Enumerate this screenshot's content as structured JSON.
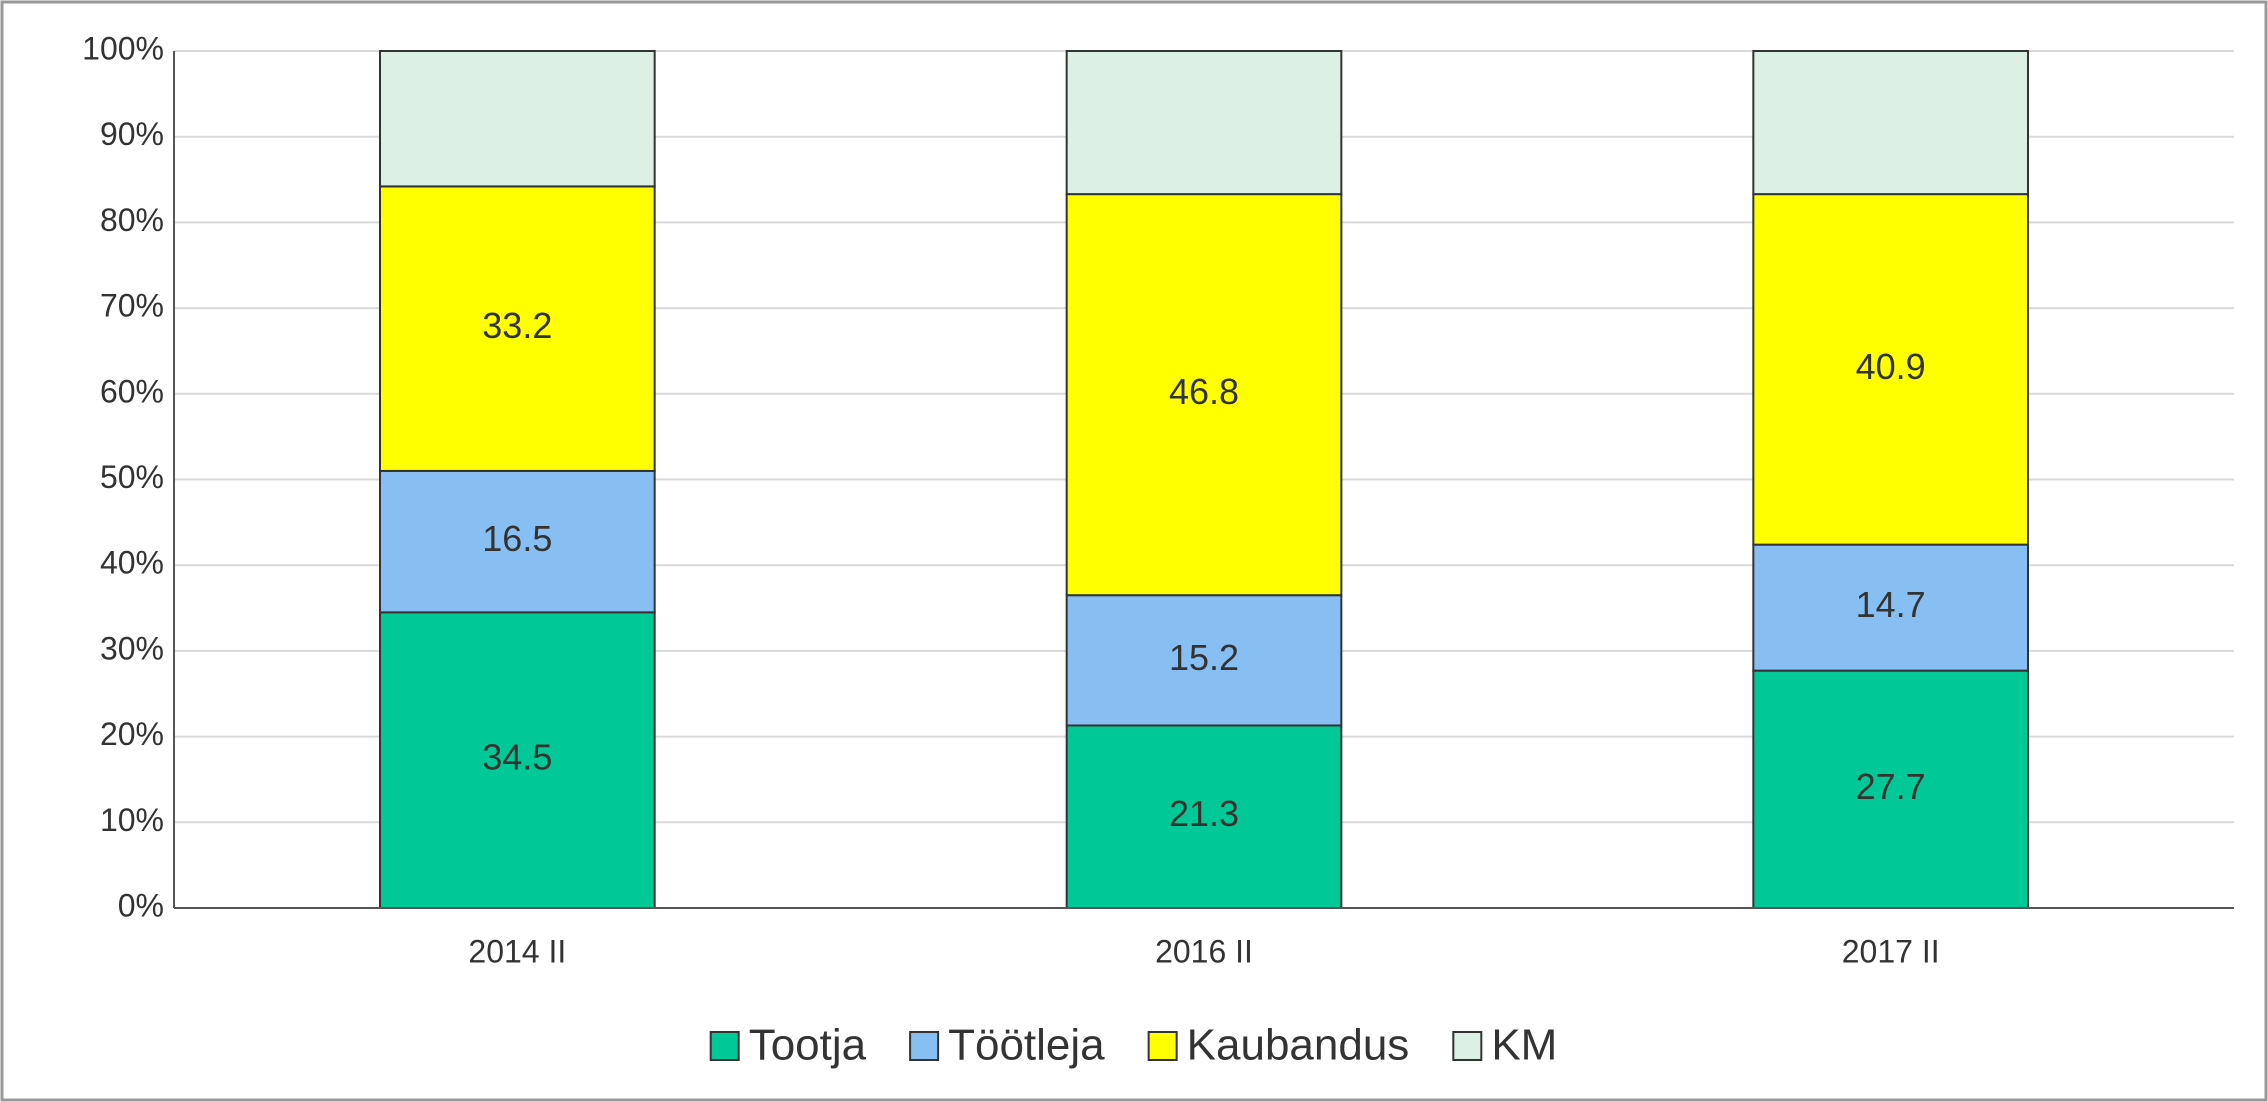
{
  "chart_data": {
    "type": "stacked_bar",
    "categories": [
      "2014 II",
      "2016 II",
      "2017 II"
    ],
    "series": [
      {
        "name": "Tootja",
        "color": "#00c896",
        "labels": true,
        "values": [
          34.5,
          21.3,
          27.7
        ]
      },
      {
        "name": "Töötleja",
        "color": "#88bff2",
        "labels": true,
        "values": [
          16.5,
          15.2,
          14.7
        ]
      },
      {
        "name": "Kaubandus",
        "color": "#ffff00",
        "labels": true,
        "values": [
          33.2,
          46.8,
          40.9
        ]
      },
      {
        "name": "KM",
        "color": "#dcf0e6",
        "labels": false,
        "values": [
          15.8,
          16.7,
          16.7
        ]
      }
    ],
    "ylim": [
      0,
      100
    ],
    "yticks": [
      {
        "value": 0,
        "label": "0%"
      },
      {
        "value": 10,
        "label": "10%"
      },
      {
        "value": 20,
        "label": "20%"
      },
      {
        "value": 30,
        "label": "30%"
      },
      {
        "value": 40,
        "label": "40%"
      },
      {
        "value": 50,
        "label": "50%"
      },
      {
        "value": 60,
        "label": "60%"
      },
      {
        "value": 70,
        "label": "70%"
      },
      {
        "value": 80,
        "label": "80%"
      },
      {
        "value": 90,
        "label": "90%"
      },
      {
        "value": 100,
        "label": "100%"
      }
    ],
    "grid": true,
    "legend": "bottom"
  }
}
